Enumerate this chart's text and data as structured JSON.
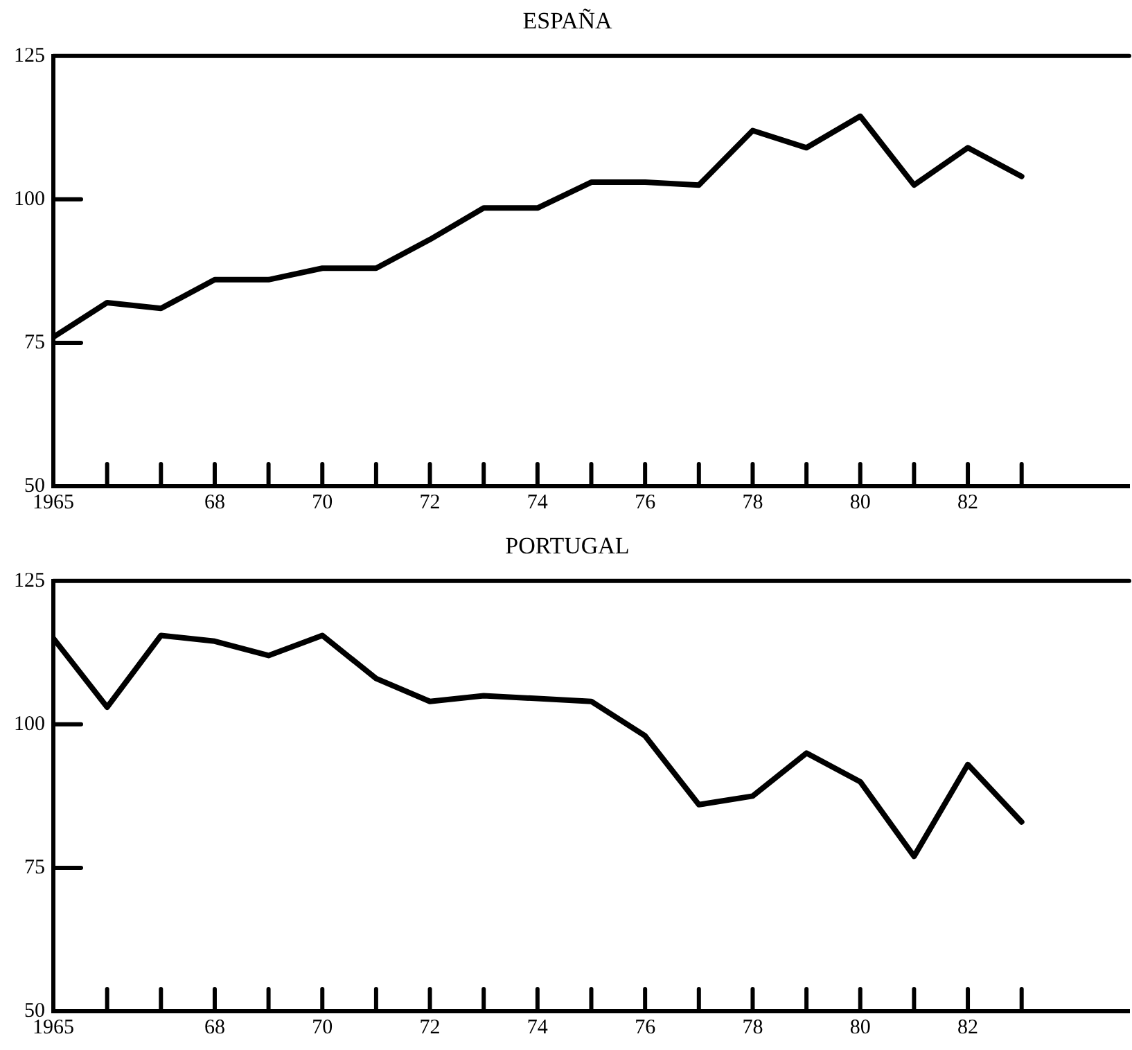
{
  "chart_data": [
    {
      "type": "line",
      "title": "ESPAÑA",
      "marker": "none",
      "line_style": "solid",
      "grid": false,
      "legend": false,
      "x": [
        1965,
        1966,
        1967,
        1968,
        1969,
        1970,
        1971,
        1972,
        1973,
        1974,
        1975,
        1976,
        1977,
        1978,
        1979,
        1980,
        1981,
        1982,
        1983
      ],
      "series": [
        {
          "color": "#000000",
          "values": [
            76,
            82,
            81,
            86,
            86,
            88,
            88,
            93,
            98.5,
            98.5,
            103,
            103,
            102.5,
            112,
            109,
            114.5,
            102.5,
            109,
            104
          ]
        }
      ],
      "xlim": [
        1965,
        1985
      ],
      "xticks": [
        {
          "value": 1965,
          "label": "1965"
        },
        {
          "value": 1966,
          "label": null
        },
        {
          "value": 1967,
          "label": null
        },
        {
          "value": 1968,
          "label": "68"
        },
        {
          "value": 1969,
          "label": null
        },
        {
          "value": 1970,
          "label": "70"
        },
        {
          "value": 1971,
          "label": null
        },
        {
          "value": 1972,
          "label": "72"
        },
        {
          "value": 1973,
          "label": null
        },
        {
          "value": 1974,
          "label": "74"
        },
        {
          "value": 1975,
          "label": null
        },
        {
          "value": 1976,
          "label": "76"
        },
        {
          "value": 1977,
          "label": null
        },
        {
          "value": 1978,
          "label": "78"
        },
        {
          "value": 1979,
          "label": null
        },
        {
          "value": 1980,
          "label": "80"
        },
        {
          "value": 1981,
          "label": null
        },
        {
          "value": 1982,
          "label": "82"
        },
        {
          "value": 1983,
          "label": null
        }
      ],
      "ylim": [
        50,
        125
      ],
      "yticks": [
        50,
        75,
        100,
        125
      ]
    },
    {
      "type": "line",
      "title": "PORTUGAL",
      "marker": "none",
      "line_style": "solid",
      "grid": false,
      "legend": false,
      "x": [
        1965,
        1966,
        1967,
        1968,
        1969,
        1970,
        1971,
        1972,
        1973,
        1974,
        1975,
        1976,
        1977,
        1978,
        1979,
        1980,
        1981,
        1982,
        1983
      ],
      "series": [
        {
          "color": "#000000",
          "values": [
            115,
            103,
            115.5,
            114.5,
            112,
            115.5,
            108,
            104,
            105,
            104.5,
            104,
            98,
            86,
            87.5,
            95,
            90,
            77,
            93,
            83
          ]
        }
      ],
      "xlim": [
        1965,
        1985
      ],
      "xticks": [
        {
          "value": 1965,
          "label": "1965"
        },
        {
          "value": 1966,
          "label": null
        },
        {
          "value": 1967,
          "label": null
        },
        {
          "value": 1968,
          "label": "68"
        },
        {
          "value": 1969,
          "label": null
        },
        {
          "value": 1970,
          "label": "70"
        },
        {
          "value": 1971,
          "label": null
        },
        {
          "value": 1972,
          "label": "72"
        },
        {
          "value": 1973,
          "label": null
        },
        {
          "value": 1974,
          "label": "74"
        },
        {
          "value": 1975,
          "label": null
        },
        {
          "value": 1976,
          "label": "76"
        },
        {
          "value": 1977,
          "label": null
        },
        {
          "value": 1978,
          "label": "78"
        },
        {
          "value": 1979,
          "label": null
        },
        {
          "value": 1980,
          "label": "80"
        },
        {
          "value": 1981,
          "label": null
        },
        {
          "value": 1982,
          "label": "82"
        },
        {
          "value": 1983,
          "label": null
        }
      ],
      "ylim": [
        50,
        125
      ],
      "yticks": [
        50,
        75,
        100,
        125
      ]
    }
  ]
}
